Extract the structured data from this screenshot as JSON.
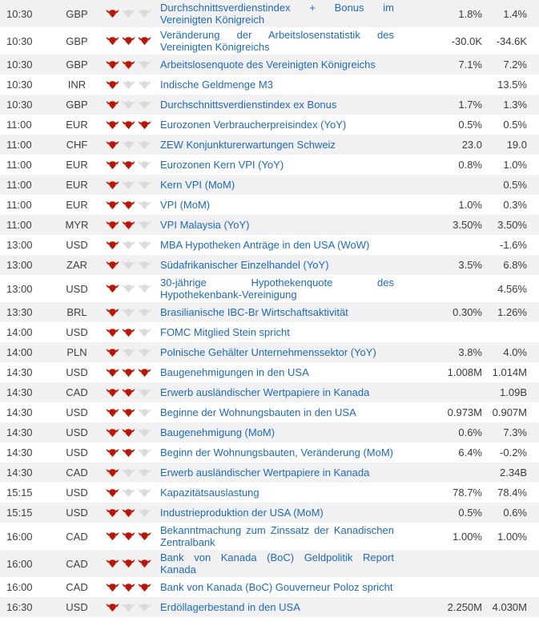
{
  "colors": {
    "link_blue": "#1b6ac4",
    "bull_active_red": "#c01400",
    "bull_inactive_gray": "#dadadc",
    "row_stripe_gray": "#f1f1f2",
    "text_gray": "#3c3c3c"
  },
  "icons": {
    "importance_active": "bull-icon",
    "importance_inactive": "bull-icon-inactive"
  },
  "rows": [
    {
      "time": "10:30",
      "currency": "GBP",
      "bulls": 1,
      "event": "Durchschnittsverdienstindex + Bonus im Vereinigten Königreich",
      "value1": "1.8%",
      "value2": "1.4%"
    },
    {
      "time": "10:30",
      "currency": "GBP",
      "bulls": 3,
      "event": "Veränderung der Arbeitslosenstatistik des Vereinigten Königreichs",
      "value1": "-30.0K",
      "value2": "-34.6K"
    },
    {
      "time": "10:30",
      "currency": "GBP",
      "bulls": 2,
      "event": "Arbeitslosenquote des Vereinigten Königreichs",
      "value1": "7.1%",
      "value2": "7.2%"
    },
    {
      "time": "10:30",
      "currency": "INR",
      "bulls": 1,
      "event": "Indische Geldmenge M3",
      "value1": "",
      "value2": "13.5%"
    },
    {
      "time": "10:30",
      "currency": "GBP",
      "bulls": 1,
      "event": "Durchschnittsverdienstindex ex Bonus",
      "value1": "1.7%",
      "value2": "1.3%"
    },
    {
      "time": "11:00",
      "currency": "EUR",
      "bulls": 3,
      "event": "Eurozonen Verbraucherpreisindex (YoY)",
      "value1": "0.5%",
      "value2": "0.5%"
    },
    {
      "time": "11:00",
      "currency": "CHF",
      "bulls": 1,
      "event": "ZEW Konjunkturerwartungen Schweiz",
      "value1": "23.0",
      "value2": "19.0"
    },
    {
      "time": "11:00",
      "currency": "EUR",
      "bulls": 2,
      "event": "Eurozonen Kern VPI (YoY)",
      "value1": "0.8%",
      "value2": "1.0%"
    },
    {
      "time": "11:00",
      "currency": "EUR",
      "bulls": 1,
      "event": "Kern VPI (MoM)",
      "value1": "",
      "value2": "0.5%"
    },
    {
      "time": "11:00",
      "currency": "EUR",
      "bulls": 2,
      "event": "VPI (MoM)",
      "value1": "1.0%",
      "value2": "0.3%"
    },
    {
      "time": "11:00",
      "currency": "MYR",
      "bulls": 2,
      "event": "VPI Malaysia (YoY)",
      "value1": "3.50%",
      "value2": "3.50%"
    },
    {
      "time": "13:00",
      "currency": "USD",
      "bulls": 1,
      "event": "MBA Hypotheken Anträge in den USA (WoW)",
      "value1": "",
      "value2": "-1.6%"
    },
    {
      "time": "13:00",
      "currency": "ZAR",
      "bulls": 1,
      "event": "Südafrikanischer Einzelhandel (YoY)",
      "value1": "3.5%",
      "value2": "6.8%"
    },
    {
      "time": "13:00",
      "currency": "USD",
      "bulls": 1,
      "event": "30-jährige Hypothekenquote des Hypothekenbank-Vereinigung",
      "value1": "",
      "value2": "4.56%"
    },
    {
      "time": "13:30",
      "currency": "BRL",
      "bulls": 1,
      "event": "Brasilianische IBC-Br Wirtschaftsaktivität",
      "value1": "0.30%",
      "value2": "1.26%"
    },
    {
      "time": "14:00",
      "currency": "USD",
      "bulls": 2,
      "event": "FOMC Mitglied Stein spricht",
      "value1": "",
      "value2": ""
    },
    {
      "time": "14:00",
      "currency": "PLN",
      "bulls": 1,
      "event": "Polnische Gehälter Unternehmenssektor (YoY)",
      "value1": "3.8%",
      "value2": "4.0%"
    },
    {
      "time": "14:30",
      "currency": "USD",
      "bulls": 3,
      "event": "Baugenehmigungen in den USA",
      "value1": "1.008M",
      "value2": "1.014M"
    },
    {
      "time": "14:30",
      "currency": "CAD",
      "bulls": 2,
      "event": "Erwerb ausländischer Wertpapiere in Kanada",
      "value1": "",
      "value2": "1.09B"
    },
    {
      "time": "14:30",
      "currency": "USD",
      "bulls": 2,
      "event": "Beginne der Wohnungsbauten in den USA",
      "value1": "0.973M",
      "value2": "0.907M"
    },
    {
      "time": "14:30",
      "currency": "USD",
      "bulls": 2,
      "event": "Baugenehmigung (MoM)",
      "value1": "0.6%",
      "value2": "7.3%"
    },
    {
      "time": "14:30",
      "currency": "USD",
      "bulls": 2,
      "event": "Beginn der Wohnungsbauten, Veränderung (MoM)",
      "value1": "6.4%",
      "value2": "-0.2%"
    },
    {
      "time": "14:30",
      "currency": "CAD",
      "bulls": 1,
      "event": "Erwerb ausländischer Wertpapiere in Kanada",
      "value1": "",
      "value2": "2.34B"
    },
    {
      "time": "15:15",
      "currency": "USD",
      "bulls": 1,
      "event": "Kapazitätsauslastung",
      "value1": "78.7%",
      "value2": "78.4%"
    },
    {
      "time": "15:15",
      "currency": "USD",
      "bulls": 2,
      "event": "Industrieproduktion der USA (MoM)",
      "value1": "0.5%",
      "value2": "0.6%"
    },
    {
      "time": "16:00",
      "currency": "CAD",
      "bulls": 3,
      "event": "Bekanntmachung zum Zinssatz der Kanadischen Zentralbank",
      "value1": "1.00%",
      "value2": "1.00%"
    },
    {
      "time": "16:00",
      "currency": "CAD",
      "bulls": 3,
      "event": "Bank von Kanada (BoC) Geldpolitik Report Kanada",
      "value1": "",
      "value2": ""
    },
    {
      "time": "16:00",
      "currency": "CAD",
      "bulls": 3,
      "event": "Bank von Kanada (BoC) Gouverneur Poloz spricht",
      "value1": "",
      "value2": ""
    },
    {
      "time": "16:30",
      "currency": "USD",
      "bulls": 1,
      "event": "Erdöllagerbestand in den USA",
      "value1": "2.250M",
      "value2": "4.030M"
    }
  ]
}
